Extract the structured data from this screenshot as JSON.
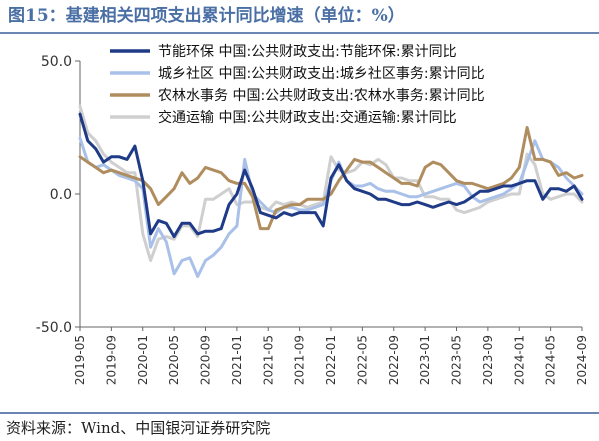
{
  "title": "图15：基建相关四项支出累计同比增速（单位：%）",
  "source": "资料来源：Wind、中国银河证券研究院",
  "chart_data": {
    "type": "line",
    "title": "图15：基建相关四项支出累计同比增速（单位：%）",
    "xlabel": "",
    "ylabel": "",
    "ylim": [
      -50,
      50
    ],
    "yticks": [
      50,
      0,
      -50
    ],
    "ytick_labels": [
      "50.0",
      "0.0",
      "-50.0"
    ],
    "grid": false,
    "legend_position": "top-right",
    "x": [
      "2019-05",
      "2019-06",
      "2019-07",
      "2019-08",
      "2019-09",
      "2019-10",
      "2019-11",
      "2019-12",
      "2020-01",
      "2020-02",
      "2020-03",
      "2020-04",
      "2020-05",
      "2020-06",
      "2020-07",
      "2020-08",
      "2020-09",
      "2020-10",
      "2020-11",
      "2020-12",
      "2021-01",
      "2021-02",
      "2021-03",
      "2021-04",
      "2021-05",
      "2021-06",
      "2021-07",
      "2021-08",
      "2021-09",
      "2021-10",
      "2021-11",
      "2021-12",
      "2022-01",
      "2022-02",
      "2022-03",
      "2022-04",
      "2022-05",
      "2022-06",
      "2022-07",
      "2022-08",
      "2022-09",
      "2022-10",
      "2022-11",
      "2022-12",
      "2023-01",
      "2023-02",
      "2023-03",
      "2023-04",
      "2023-05",
      "2023-06",
      "2023-07",
      "2023-08",
      "2023-09",
      "2023-10",
      "2023-11",
      "2023-12",
      "2024-01",
      "2024-02",
      "2024-03",
      "2024-04",
      "2024-05",
      "2024-06",
      "2024-07",
      "2024-08",
      "2024-09"
    ],
    "xtick_labels": [
      "2019-05",
      "2019-09",
      "2020-01",
      "2020-05",
      "2020-09",
      "2021-01",
      "2021-05",
      "2021-09",
      "2022-01",
      "2022-05",
      "2022-09",
      "2023-01",
      "2023-05",
      "2023-09",
      "2024-01",
      "2024-05",
      "2024-09"
    ],
    "series": [
      {
        "name": "节能环保 中国:公共财政支出:节能环保:累计同比",
        "color": "#1f3b87",
        "width": 3,
        "values": [
          30,
          20,
          17,
          12,
          14,
          14,
          13,
          18,
          5,
          -15,
          -10,
          -11,
          -16,
          -11,
          -11,
          -15,
          -14,
          -14,
          -13,
          -4,
          0,
          9,
          2,
          -7,
          -8,
          -9,
          -7,
          -8,
          -7,
          -7,
          -7,
          -12,
          6,
          11,
          5,
          2,
          1,
          0,
          -2,
          -2,
          -3,
          -4,
          -4,
          -3,
          -4,
          -5,
          -4,
          -3,
          -4,
          -3,
          -1,
          1,
          1,
          2,
          3,
          3,
          4,
          5,
          5,
          -2,
          2,
          2,
          1,
          3,
          -2
        ]
      },
      {
        "name": "城乡社区 中国:公共财政支出:城乡社区事务:累计同比",
        "color": "#a9c0e8",
        "width": 3,
        "values": [
          21,
          12,
          10,
          11,
          9,
          7,
          6,
          5,
          2,
          -20,
          -13,
          -18,
          -30,
          -25,
          -24,
          -31,
          -25,
          -23,
          -20,
          -15,
          -12,
          13,
          0,
          -3,
          -6,
          -7,
          -5,
          -5,
          -6,
          -6,
          -5,
          -4,
          5,
          12,
          5,
          3,
          3,
          4,
          2,
          1,
          1,
          0,
          -1,
          -1,
          0,
          1,
          2,
          3,
          4,
          3,
          -1,
          -3,
          -2,
          -1,
          0,
          2,
          4,
          12,
          20,
          13,
          12,
          10,
          6,
          3,
          0
        ]
      },
      {
        "name": "农林水事务 中国:公共财政支出:农林水事务:累计同比",
        "color": "#b08d5f",
        "width": 3,
        "values": [
          14,
          12,
          10,
          8,
          9,
          8,
          7,
          6,
          5,
          2,
          -4,
          -1,
          2,
          8,
          4,
          6,
          10,
          9,
          8,
          5,
          4,
          4,
          -1,
          -13,
          -13,
          -6,
          -5,
          -4,
          -4,
          -2,
          -2,
          -2,
          0,
          5,
          9,
          13,
          12,
          12,
          10,
          8,
          6,
          4,
          4,
          3,
          10,
          12,
          11,
          8,
          5,
          4,
          4,
          3,
          2,
          3,
          4,
          6,
          10,
          25,
          13,
          13,
          12,
          7,
          8,
          6,
          7
        ]
      },
      {
        "name": "交通运输 中国:公共财政支出:交通运输:累计同比",
        "color": "#cfcfcf",
        "width": 3,
        "values": [
          33,
          23,
          20,
          15,
          12,
          10,
          8,
          8,
          -15,
          -25,
          -17,
          -16,
          -17,
          -12,
          -12,
          -16,
          -2,
          -2,
          0,
          2,
          -4,
          -3,
          -3,
          -5,
          -6,
          -3,
          -4,
          -3,
          -4,
          -5,
          -4,
          -3,
          14,
          9,
          8,
          9,
          12,
          11,
          13,
          11,
          6,
          6,
          5,
          5,
          -1,
          -1,
          -2,
          -2,
          -6,
          -7,
          -6,
          -5,
          -3,
          -2,
          -1,
          0,
          0,
          15,
          11,
          0,
          -2,
          -1,
          0,
          0,
          -3
        ]
      }
    ]
  }
}
